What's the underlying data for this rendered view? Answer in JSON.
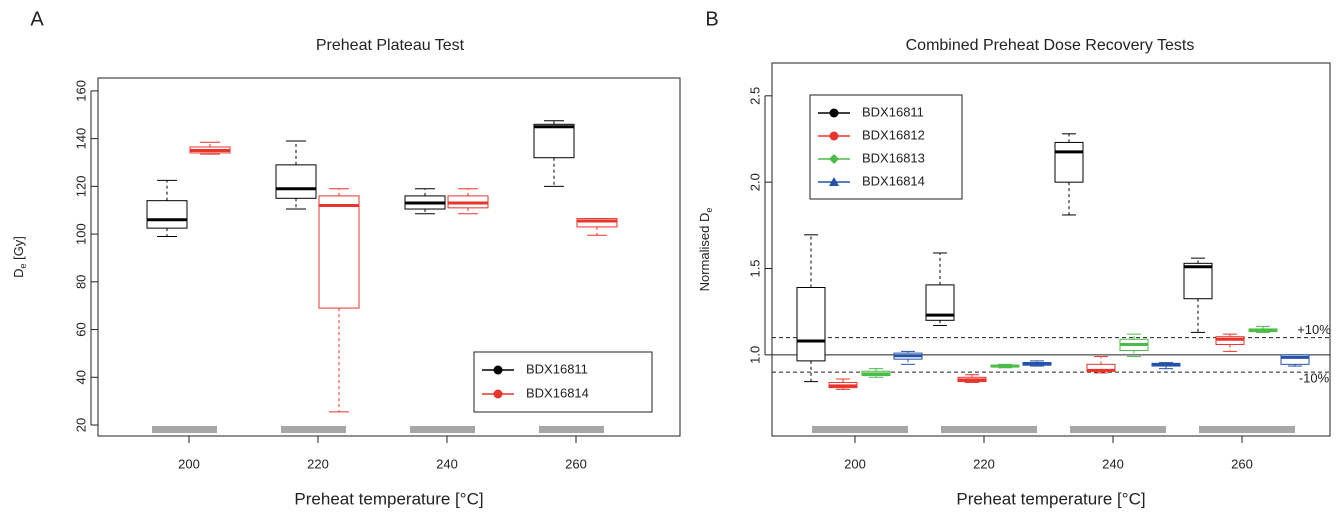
{
  "chart_data": [
    {
      "type": "box",
      "panel_label": "A",
      "title": "Preheat Plateau Test",
      "xlabel": "Preheat temperature [°C]",
      "ylabel": {
        "text": "D",
        "subscript": "e",
        "suffix": " [Gy]"
      },
      "categories": [
        "200",
        "220",
        "240",
        "260"
      ],
      "ylim": [
        15.4,
        165.4
      ],
      "yticks": [
        20,
        40,
        60,
        80,
        100,
        120,
        140,
        160
      ],
      "legend": "bottom-right",
      "series": [
        {
          "name": "BDX16811",
          "color": "#000000",
          "marker": "circle",
          "min": [
            99,
            110.5,
            108.5,
            120
          ],
          "q1": [
            102.5,
            115,
            110.5,
            132
          ],
          "median": [
            106,
            119,
            113,
            145
          ],
          "q3": [
            114,
            129,
            116,
            146
          ],
          "max": [
            122.5,
            139,
            119,
            147.5
          ]
        },
        {
          "name": "BDX16814",
          "color": "#e8352c",
          "marker": "circle",
          "min": [
            133.5,
            25.5,
            108.5,
            99.5
          ],
          "q1": [
            134,
            69,
            111,
            103
          ],
          "median": [
            135,
            112,
            113,
            105.5
          ],
          "q3": [
            136.5,
            116,
            116,
            106.5
          ],
          "max": [
            138.5,
            119,
            119,
            106.5
          ]
        }
      ]
    },
    {
      "type": "box",
      "panel_label": "B",
      "title": "Combined Preheat Dose Recovery Tests",
      "xlabel": "Preheat temperature [°C]",
      "ylabel": {
        "text": "Normalised D",
        "subscript": "e"
      },
      "categories": [
        "200",
        "220",
        "240",
        "260"
      ],
      "ylim": [
        0.53,
        2.69
      ],
      "yticks": [
        {
          "value": 1,
          "label": "1.0"
        },
        1.5,
        {
          "value": 2,
          "label": "2.0"
        },
        2.5
      ],
      "legend": "top-left",
      "ref_lines": [
        {
          "value": 1.1,
          "label": "+10%",
          "dashed": true
        },
        {
          "value": 1,
          "dashed": false
        },
        {
          "value": 0.9,
          "label": "-10%",
          "dashed": true
        }
      ],
      "series": [
        {
          "name": "BDX16811",
          "color": "#000000",
          "marker": "circle",
          "min": [
            0.845,
            1.17,
            1.81,
            1.13
          ],
          "q1": [
            0.965,
            1.2,
            2.0,
            1.325
          ],
          "median": [
            1.08,
            1.23,
            2.175,
            1.51
          ],
          "q3": [
            1.39,
            1.405,
            2.23,
            1.53
          ],
          "max": [
            1.695,
            1.59,
            2.28,
            1.56
          ]
        },
        {
          "name": "BDX16812",
          "color": "#e8352c",
          "marker": "circle",
          "min": [
            0.8,
            0.84,
            0.895,
            1.02
          ],
          "q1": [
            0.81,
            0.845,
            0.905,
            1.06
          ],
          "median": [
            0.82,
            0.855,
            0.91,
            1.09
          ],
          "q3": [
            0.84,
            0.87,
            0.945,
            1.105
          ],
          "max": [
            0.86,
            0.885,
            0.99,
            1.12
          ]
        },
        {
          "name": "BDX16813",
          "color": "#4cbb47",
          "marker": "diamond",
          "min": [
            0.87,
            0.925,
            0.99,
            1.13
          ],
          "q1": [
            0.88,
            0.93,
            1.025,
            1.135
          ],
          "median": [
            0.89,
            0.935,
            1.06,
            1.14
          ],
          "q3": [
            0.905,
            0.94,
            1.09,
            1.15
          ],
          "max": [
            0.92,
            0.945,
            1.12,
            1.165
          ]
        },
        {
          "name": "BDX16814",
          "color": "#2452a8",
          "marker": "triangle",
          "min": [
            0.945,
            0.935,
            0.92,
            0.935
          ],
          "q1": [
            0.975,
            0.94,
            0.935,
            0.945
          ],
          "median": [
            0.995,
            0.95,
            0.945,
            0.985
          ],
          "q3": [
            1.01,
            0.955,
            0.95,
            1.0
          ],
          "max": [
            1.02,
            0.965,
            0.955,
            1.0
          ]
        }
      ]
    }
  ]
}
